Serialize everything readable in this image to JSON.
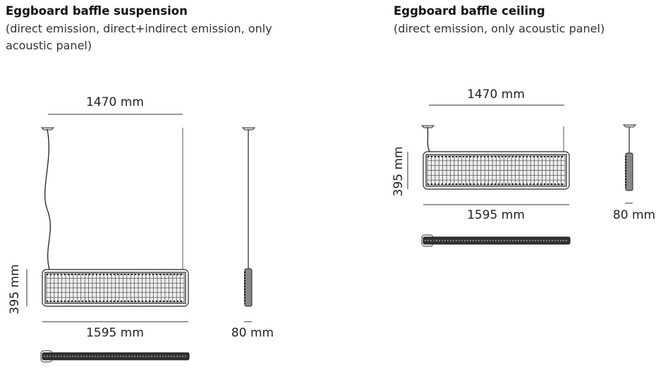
{
  "suspension": {
    "title": "Eggboard baffle suspension",
    "subtitle": "(direct emission, direct+indirect emission, only acoustic panel)",
    "dims": {
      "cable_spacing": "1470 mm",
      "height": "395 mm",
      "width": "1595 mm",
      "depth": "80 mm"
    }
  },
  "ceiling": {
    "title": "Eggboard baffle ceiling",
    "subtitle": "(direct emission, only acoustic panel)",
    "dims": {
      "cable_spacing": "1470 mm",
      "height": "395 mm",
      "width": "1595 mm",
      "depth": "80 mm"
    }
  }
}
